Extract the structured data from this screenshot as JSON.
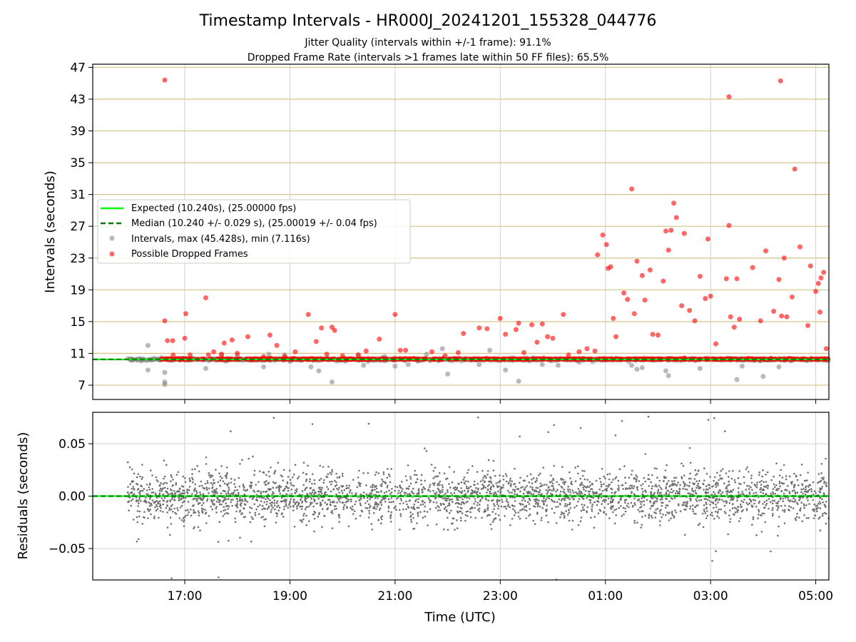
{
  "chart_data": [
    {
      "type": "scatter",
      "panel": "intervals",
      "title": "Timestamp Intervals - HR000J_20241201_155328_044776",
      "subtitle_lines": [
        "Jitter Quality (intervals within +/-1 frame): 91.1%",
        "Dropped Frame Rate (intervals >1 frames late within 50 FF files): 65.5%"
      ],
      "xlabel": "",
      "ylabel": "Intervals (seconds)",
      "xlim_hours": [
        15.25,
        29.25
      ],
      "ylim": [
        5.2,
        47.4
      ],
      "yticks": [
        7,
        11,
        15,
        19,
        23,
        27,
        31,
        35,
        39,
        43,
        47
      ],
      "grid": true,
      "legend_position": "center-left",
      "legend": [
        {
          "label": "Expected (10.240s), (25.00000 fps)",
          "style": "solid-line",
          "color": "#00ff00"
        },
        {
          "label": "Median (10.240 +/- 0.029 s), (25.00019 +/- 0.04 fps)",
          "style": "dashed-line",
          "color": "#008000"
        },
        {
          "label": "Intervals, max (45.428s), min (7.116s)",
          "style": "marker",
          "color": "#808080"
        },
        {
          "label": "Possible Dropped Frames",
          "style": "marker",
          "color": "#ff0000"
        }
      ],
      "expected_interval": 10.24,
      "median_interval": 10.24,
      "series": [
        {
          "name": "Possible Dropped Frames",
          "color": "#ff0000",
          "points": [
            [
              16.62,
              45.4
            ],
            [
              16.62,
              15.1
            ],
            [
              16.67,
              12.6
            ],
            [
              16.77,
              12.6
            ],
            [
              16.78,
              10.8
            ],
            [
              17.0,
              12.9
            ],
            [
              17.02,
              16.0
            ],
            [
              17.1,
              10.8
            ],
            [
              17.4,
              18.0
            ],
            [
              17.45,
              10.8
            ],
            [
              17.55,
              11.2
            ],
            [
              17.7,
              10.9
            ],
            [
              17.75,
              12.3
            ],
            [
              17.9,
              12.7
            ],
            [
              18.0,
              11.0
            ],
            [
              18.2,
              13.1
            ],
            [
              18.5,
              10.6
            ],
            [
              18.62,
              13.3
            ],
            [
              18.75,
              12.0
            ],
            [
              18.9,
              10.6
            ],
            [
              19.1,
              11.2
            ],
            [
              19.35,
              15.9
            ],
            [
              19.5,
              12.5
            ],
            [
              19.6,
              14.2
            ],
            [
              19.7,
              10.9
            ],
            [
              19.8,
              14.3
            ],
            [
              19.85,
              13.9
            ],
            [
              20.0,
              10.7
            ],
            [
              20.3,
              10.8
            ],
            [
              20.45,
              11.3
            ],
            [
              20.7,
              12.8
            ],
            [
              21.0,
              15.9
            ],
            [
              21.1,
              11.4
            ],
            [
              21.2,
              11.4
            ],
            [
              21.7,
              11.2
            ],
            [
              21.95,
              10.7
            ],
            [
              22.2,
              11.1
            ],
            [
              22.3,
              13.5
            ],
            [
              22.6,
              14.2
            ],
            [
              22.75,
              14.1
            ],
            [
              23.0,
              15.4
            ],
            [
              23.1,
              13.4
            ],
            [
              23.3,
              14.0
            ],
            [
              23.35,
              14.8
            ],
            [
              23.45,
              11.1
            ],
            [
              23.6,
              14.6
            ],
            [
              23.7,
              12.4
            ],
            [
              23.8,
              14.7
            ],
            [
              23.9,
              13.1
            ],
            [
              24.0,
              12.9
            ],
            [
              24.2,
              15.9
            ],
            [
              24.3,
              10.8
            ],
            [
              24.5,
              11.2
            ],
            [
              24.65,
              11.6
            ],
            [
              24.8,
              11.3
            ],
            [
              24.85,
              23.4
            ],
            [
              24.95,
              25.9
            ],
            [
              25.02,
              24.7
            ],
            [
              25.05,
              21.7
            ],
            [
              25.1,
              21.9
            ],
            [
              25.15,
              15.4
            ],
            [
              25.2,
              13.1
            ],
            [
              25.35,
              18.6
            ],
            [
              25.42,
              17.8
            ],
            [
              25.5,
              31.7
            ],
            [
              25.55,
              16.0
            ],
            [
              25.6,
              22.6
            ],
            [
              25.7,
              20.8
            ],
            [
              25.75,
              17.7
            ],
            [
              25.85,
              21.5
            ],
            [
              25.9,
              13.4
            ],
            [
              26.0,
              13.3
            ],
            [
              26.1,
              20.1
            ],
            [
              26.15,
              26.4
            ],
            [
              26.2,
              24.0
            ],
            [
              26.25,
              26.5
            ],
            [
              26.3,
              29.9
            ],
            [
              26.35,
              28.1
            ],
            [
              26.45,
              17.0
            ],
            [
              26.5,
              26.1
            ],
            [
              26.6,
              16.4
            ],
            [
              26.7,
              15.1
            ],
            [
              26.8,
              20.7
            ],
            [
              26.9,
              17.9
            ],
            [
              26.95,
              25.4
            ],
            [
              27.0,
              18.2
            ],
            [
              27.1,
              12.2
            ],
            [
              27.3,
              20.4
            ],
            [
              27.35,
              43.3
            ],
            [
              27.35,
              27.1
            ],
            [
              27.38,
              15.6
            ],
            [
              27.45,
              14.3
            ],
            [
              27.5,
              20.4
            ],
            [
              27.55,
              15.3
            ],
            [
              27.8,
              21.8
            ],
            [
              27.95,
              15.1
            ],
            [
              28.05,
              23.9
            ],
            [
              28.2,
              16.3
            ],
            [
              28.3,
              20.3
            ],
            [
              28.33,
              45.3
            ],
            [
              28.35,
              15.7
            ],
            [
              28.4,
              23.0
            ],
            [
              28.45,
              15.6
            ],
            [
              28.55,
              18.1
            ],
            [
              28.6,
              34.2
            ],
            [
              28.7,
              24.4
            ],
            [
              28.85,
              14.5
            ],
            [
              28.9,
              22.0
            ],
            [
              29.0,
              18.8
            ],
            [
              29.05,
              19.8
            ],
            [
              29.08,
              16.2
            ],
            [
              29.1,
              20.5
            ],
            [
              29.15,
              21.2
            ],
            [
              29.2,
              11.6
            ]
          ]
        },
        {
          "name": "Intervals, max (45.428s), min (7.116s)",
          "color": "#808080",
          "points": [
            [
              16.3,
              12.0
            ],
            [
              16.3,
              8.9
            ],
            [
              16.62,
              8.6
            ],
            [
              16.62,
              7.4
            ],
            [
              16.62,
              7.1
            ],
            [
              17.4,
              9.1
            ],
            [
              17.7,
              10.8
            ],
            [
              18.0,
              10.7
            ],
            [
              18.5,
              9.3
            ],
            [
              18.6,
              10.9
            ],
            [
              18.9,
              10.8
            ],
            [
              19.0,
              10.0
            ],
            [
              19.4,
              9.3
            ],
            [
              19.55,
              8.8
            ],
            [
              19.8,
              7.4
            ],
            [
              20.3,
              10.8
            ],
            [
              20.4,
              9.5
            ],
            [
              20.8,
              10.6
            ],
            [
              21.0,
              9.4
            ],
            [
              21.25,
              9.6
            ],
            [
              21.6,
              10.9
            ],
            [
              21.9,
              11.6
            ],
            [
              22.0,
              8.4
            ],
            [
              22.6,
              9.6
            ],
            [
              22.8,
              11.4
            ],
            [
              23.1,
              8.9
            ],
            [
              23.35,
              7.5
            ],
            [
              23.8,
              9.6
            ],
            [
              24.1,
              9.5
            ],
            [
              24.5,
              9.9
            ],
            [
              25.5,
              9.5
            ],
            [
              25.6,
              9.0
            ],
            [
              25.7,
              9.2
            ],
            [
              26.15,
              8.8
            ],
            [
              26.2,
              8.2
            ],
            [
              26.8,
              9.1
            ],
            [
              27.5,
              7.7
            ],
            [
              27.6,
              9.4
            ],
            [
              28.0,
              8.1
            ],
            [
              28.3,
              9.3
            ]
          ]
        }
      ]
    },
    {
      "type": "scatter",
      "panel": "residuals",
      "xlabel": "Time (UTC)",
      "ylabel": "Residuals (seconds)",
      "xlim_hours": [
        15.25,
        29.25
      ],
      "ylim": [
        -0.08,
        0.08
      ],
      "yticks": [
        -0.05,
        0.0,
        0.05
      ],
      "ytick_labels": [
        "−0.05",
        "0.00",
        "0.05"
      ],
      "xticks_hours": [
        17,
        19,
        21,
        23,
        25,
        27,
        29
      ],
      "xtick_labels": [
        "17:00",
        "19:00",
        "21:00",
        "23:00",
        "01:00",
        "03:00",
        "05:00"
      ],
      "grid": true,
      "reference_lines": {
        "expected": 0.0,
        "median": 0.0
      },
      "series": [
        {
          "name": "",
          "color": "#808080",
          "x_start_hours": 15.9,
          "x_end_hours": 29.25,
          "count": 3000,
          "spread": 0.012
        }
      ]
    }
  ]
}
